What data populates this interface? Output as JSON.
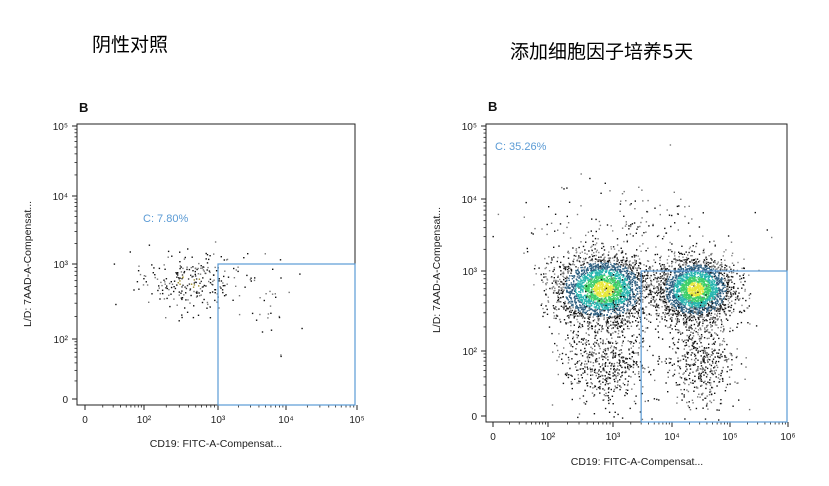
{
  "captions": {
    "left": "阴性对照",
    "right": "添加细胞因子培养5天"
  },
  "chart_data": [
    {
      "type": "scatter",
      "panel_letter": "B",
      "xlabel": "CD19: FITC-A-Compensat...",
      "ylabel": "L/D: 7AAD-A-Compensat...",
      "x_ticks": [
        "0",
        "10²",
        "10³",
        "10⁴",
        "10⁵"
      ],
      "y_ticks": [
        "0",
        "10²",
        "10³",
        "10⁵",
        "10⁴"
      ],
      "x_scale": "biexponential",
      "y_scale": "biexponential",
      "xlim": [
        0,
        100000
      ],
      "ylim": [
        0,
        100000
      ],
      "gate": {
        "label": "C: 7.80%",
        "percent": 7.8,
        "x_min": 1000,
        "x_max": 100000,
        "y_min": 0,
        "y_max": 1000
      },
      "populations": [
        {
          "name": "",
          "x_center": 400,
          "y_center": 600,
          "count": 260,
          "spread_x": 0.35,
          "spread_y": 0.2
        },
        {
          "name": "",
          "x_center": 6000,
          "y_center": 200,
          "count": 28,
          "spread_x": 0.25,
          "spread_y": 0.45
        }
      ],
      "gate_color": "#5b9bd5"
    },
    {
      "type": "scatter",
      "panel_letter": "B",
      "xlabel": "CD19: FITC-A-Compensat...",
      "ylabel": "L/D: 7AAD-A-Compensat...",
      "x_ticks": [
        "0",
        "10²",
        "10³",
        "10⁴",
        "10⁵",
        "10⁶"
      ],
      "y_ticks": [
        "0",
        "10²",
        "10³",
        "10⁴",
        "10⁵"
      ],
      "x_scale": "biexponential",
      "y_scale": "biexponential",
      "xlim": [
        0,
        1000000
      ],
      "ylim": [
        0,
        100000
      ],
      "gate": {
        "label": "C: 35.26%",
        "percent": 35.26,
        "x_min": 3000,
        "x_max": 1000000,
        "y_min": 0,
        "y_max": 1000
      },
      "populations": [
        {
          "name": "",
          "x_center": 700,
          "y_center": 600,
          "count": 2600,
          "spread_x": 0.38,
          "spread_y": 0.22
        },
        {
          "name": "",
          "x_center": 25000,
          "y_center": 600,
          "count": 2300,
          "spread_x": 0.33,
          "spread_y": 0.2
        },
        {
          "name": "",
          "x_center": 800,
          "y_center": 80,
          "count": 700,
          "spread_x": 0.35,
          "spread_y": 0.45
        },
        {
          "name": "",
          "x_center": 30000,
          "y_center": 80,
          "count": 600,
          "spread_x": 0.3,
          "spread_y": 0.45
        },
        {
          "name": "",
          "x_center": 1500,
          "y_center": 4000,
          "count": 170,
          "spread_x": 0.9,
          "spread_y": 0.3
        }
      ],
      "gate_color": "#5b9bd5"
    }
  ]
}
